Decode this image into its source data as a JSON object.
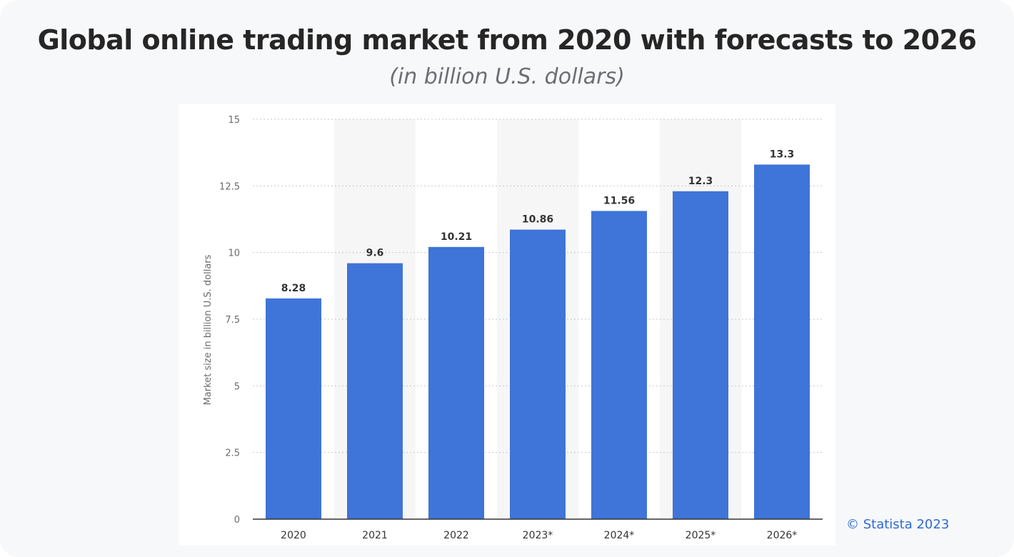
{
  "title": "Global online trading market from 2020 with forecasts to 2026",
  "subtitle": "(in billion U.S. dollars)",
  "copyright": "© Statista 2023",
  "colors": {
    "bar": "#3f74d8",
    "grid": "#c7c9cc",
    "axis": "#333333",
    "tick_text": "#6b6b6b",
    "label_text": "#333333",
    "stripe": "#f6f6f7"
  },
  "chart_data": {
    "type": "bar",
    "title": "Global online trading market from 2020 with forecasts to 2026",
    "subtitle": "(in billion U.S. dollars)",
    "xlabel": "",
    "ylabel": "Market size in billion U.S. dollars",
    "ylim": [
      0,
      15
    ],
    "yticks": [
      0,
      2.5,
      5,
      7.5,
      10,
      12.5,
      15
    ],
    "ytick_labels": [
      "0",
      "2.5",
      "5",
      "7.5",
      "10",
      "12.5",
      "15"
    ],
    "categories": [
      "2020",
      "2021",
      "2022",
      "2023*",
      "2024*",
      "2025*",
      "2026*"
    ],
    "values": [
      8.28,
      9.6,
      10.21,
      10.86,
      11.56,
      12.3,
      13.3
    ],
    "value_labels": [
      "8.28",
      "9.6",
      "10.21",
      "10.86",
      "11.56",
      "12.3",
      "13.3"
    ],
    "grid": true
  }
}
